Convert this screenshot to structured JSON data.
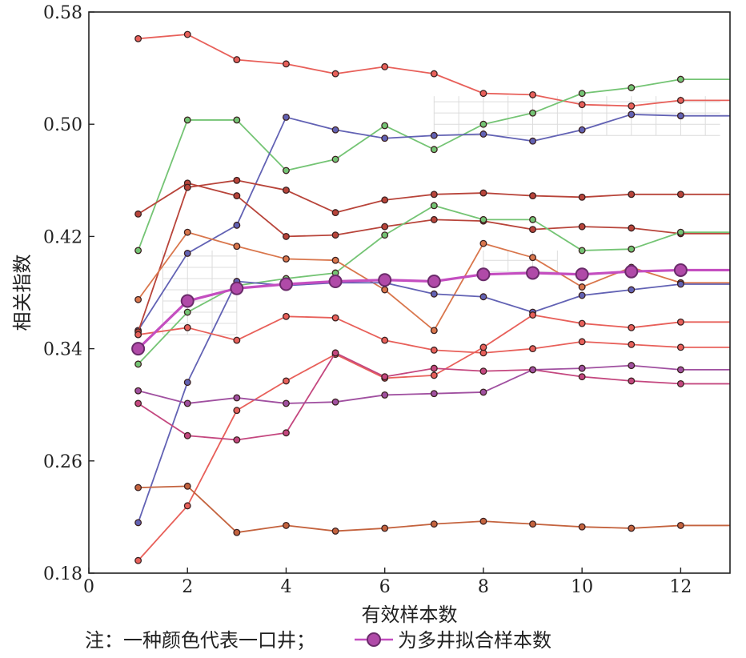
{
  "chart_data": {
    "type": "line",
    "xlabel": "有效样本数",
    "ylabel": "相关指数",
    "xlim": [
      0,
      13
    ],
    "ylim": [
      0.18,
      0.58
    ],
    "xticks": [
      "0",
      "2",
      "4",
      "6",
      "8",
      "10",
      "12"
    ],
    "yticks": [
      "0.18",
      "0.26",
      "0.34",
      "0.42",
      "0.50",
      "0.58"
    ],
    "grid": false,
    "note_prefix": "注：一种颜色代表一口井；",
    "note_suffix": "为多井拟合样本数",
    "colors": {
      "red": "#e8605a",
      "brick": "#b8443a",
      "orange": "#d9764c",
      "green": "#74c474",
      "blue": "#6262b4",
      "magenta": "#c4477f",
      "purple": "#a050a0",
      "rust": "#c4633e",
      "multi_fill": "#b04aa8",
      "multi_line": "#c44ec0"
    },
    "x": [
      1,
      2,
      3,
      4,
      5,
      6,
      7,
      8,
      9,
      10,
      11,
      12,
      13
    ],
    "series": [
      {
        "color": "red",
        "values": [
          0.561,
          0.564,
          0.546,
          0.543,
          0.536,
          0.541,
          0.536,
          0.522,
          0.521,
          0.514,
          0.513,
          0.517,
          0.517
        ]
      },
      {
        "color": "green",
        "values": [
          0.41,
          0.503,
          0.503,
          0.467,
          0.475,
          0.499,
          0.482,
          0.5,
          0.508,
          0.522,
          0.526,
          0.532,
          0.532
        ]
      },
      {
        "color": "blue",
        "values": [
          0.353,
          0.408,
          0.428,
          0.505,
          0.496,
          0.49,
          0.492,
          0.493,
          0.488,
          0.496,
          0.507,
          0.506,
          0.506
        ]
      },
      {
        "color": "brick",
        "values": [
          0.436,
          0.458,
          0.449,
          0.42,
          0.421,
          0.427,
          0.432,
          0.431,
          0.425,
          0.427,
          0.426,
          0.422,
          0.422
        ]
      },
      {
        "color": "brick",
        "values": [
          0.352,
          0.455,
          0.46,
          0.453,
          0.437,
          0.446,
          0.45,
          0.451,
          0.449,
          0.448,
          0.45,
          0.45,
          0.45
        ]
      },
      {
        "color": "green",
        "values": [
          0.329,
          0.366,
          0.385,
          0.39,
          0.394,
          0.421,
          0.442,
          0.432,
          0.432,
          0.41,
          0.411,
          0.423,
          0.423
        ]
      },
      {
        "color": "orange",
        "values": [
          0.375,
          0.423,
          0.413,
          0.404,
          0.403,
          0.382,
          0.353,
          0.415,
          0.405,
          0.384,
          0.398,
          0.387,
          0.387
        ]
      },
      {
        "color": "blue",
        "values": [
          0.216,
          0.316,
          0.388,
          0.385,
          0.387,
          0.387,
          0.379,
          0.377,
          0.366,
          0.378,
          0.382,
          0.386,
          0.386
        ]
      },
      {
        "color": "red",
        "values": [
          0.35,
          0.355,
          0.346,
          0.363,
          0.362,
          0.346,
          0.339,
          0.337,
          0.34,
          0.345,
          0.343,
          0.341,
          0.341
        ]
      },
      {
        "color": "red",
        "values": [
          0.189,
          0.228,
          0.296,
          0.317,
          0.336,
          0.319,
          0.321,
          0.341,
          0.364,
          0.358,
          0.355,
          0.359,
          0.359
        ]
      },
      {
        "color": "magenta",
        "values": [
          0.301,
          0.278,
          0.275,
          0.28,
          0.337,
          0.32,
          0.326,
          0.324,
          0.325,
          0.32,
          0.317,
          0.315,
          0.315
        ]
      },
      {
        "color": "purple",
        "values": [
          0.31,
          0.301,
          0.305,
          0.301,
          0.302,
          0.307,
          0.308,
          0.309,
          0.325,
          0.326,
          0.328,
          0.325,
          0.325
        ]
      },
      {
        "color": "rust",
        "values": [
          0.241,
          0.242,
          0.209,
          0.214,
          0.21,
          0.212,
          0.215,
          0.217,
          0.215,
          0.213,
          0.212,
          0.214,
          0.214
        ]
      },
      {
        "color": "multi",
        "emphasis": true,
        "values": [
          0.34,
          0.374,
          0.383,
          0.386,
          0.388,
          0.389,
          0.388,
          0.393,
          0.394,
          0.393,
          0.395,
          0.396,
          0.396
        ]
      }
    ]
  }
}
